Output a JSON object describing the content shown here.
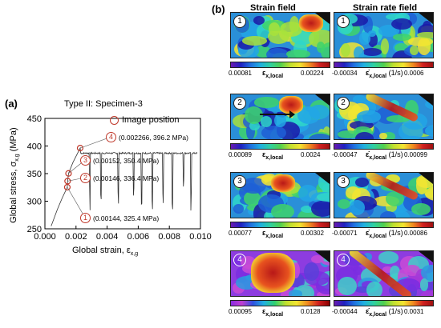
{
  "panel_a": {
    "label": "(a)",
    "title": "Type II: Specimen-3",
    "legend": "Image position",
    "ylabel": "Global stress, σ",
    "ylabel_sub": "x,g",
    "ylabel_unit": " (MPa)",
    "xlabel": "Global strain, ε",
    "xlabel_sub": "x,g",
    "yticks": [
      "250",
      "300",
      "350",
      "400",
      "450"
    ],
    "xticks": [
      "0.000",
      "0.002",
      "0.004",
      "0.006",
      "0.008",
      "0.010"
    ],
    "annotations": [
      {
        "num": "4",
        "text": "(0.002266, 396.2 MPa)"
      },
      {
        "num": "3",
        "text": "(0.00152, 350.4 MPa)"
      },
      {
        "num": "2",
        "text": "(0.00146, 336.4 MPa)"
      },
      {
        "num": "1",
        "text": "(0.00144, 325.4 MPa)"
      }
    ]
  },
  "chart_data": {
    "type": "line",
    "title": "Type II: Specimen-3",
    "xlabel": "Global strain, ε x,g",
    "ylabel": "Global stress, σ x,g (MPa)",
    "xlim": [
      0.0,
      0.01
    ],
    "ylim": [
      250,
      450
    ],
    "series": [
      {
        "values_xy": [
          [
            0.0004,
            255
          ],
          [
            0.0008,
            285
          ],
          [
            0.0011,
            305
          ],
          [
            0.00144,
            325.4
          ],
          [
            0.00146,
            336.4
          ],
          [
            0.00152,
            350.4
          ],
          [
            0.0018,
            370
          ],
          [
            0.002266,
            396.2
          ],
          [
            0.0028,
            388
          ],
          [
            0.0035,
            388
          ],
          [
            0.0045,
            388
          ],
          [
            0.0055,
            388
          ],
          [
            0.0065,
            387
          ],
          [
            0.0075,
            388
          ],
          [
            0.0085,
            387
          ],
          [
            0.0095,
            388
          ],
          [
            0.0098,
            386
          ]
        ]
      }
    ],
    "points": [
      {
        "label": "1",
        "x": 0.00144,
        "y": 325.4
      },
      {
        "label": "2",
        "x": 0.00146,
        "y": 336.4
      },
      {
        "label": "3",
        "x": 0.00152,
        "y": 350.4
      },
      {
        "label": "4",
        "x": 0.002266,
        "y": 396.2
      }
    ]
  },
  "panel_b": {
    "label": "(b)",
    "col1_title": "Strain field",
    "col2_title": "Strain rate  field",
    "strain_symbol": "ε",
    "strain_sub": "x,local",
    "rate_symbol": "ε̇",
    "rate_sub": "x,local",
    "rate_unit": " (1/s)",
    "rows": [
      {
        "num": "1",
        "strain_min": "0.00081",
        "strain_max": "0.00224",
        "rate_min": "-0.00034",
        "rate_max": "0.0006"
      },
      {
        "num": "2",
        "strain_min": "0.00089",
        "strain_max": "0.0024",
        "rate_min": "-0.00047",
        "rate_max": "0.00099"
      },
      {
        "num": "3",
        "strain_min": "0.00077",
        "strain_max": "0.00302",
        "rate_min": "-0.00071",
        "rate_max": "0.00086"
      },
      {
        "num": "4",
        "strain_min": "0.00095",
        "strain_max": "0.0128",
        "rate_min": "-0.00044",
        "rate_max": "0.0031"
      }
    ]
  }
}
